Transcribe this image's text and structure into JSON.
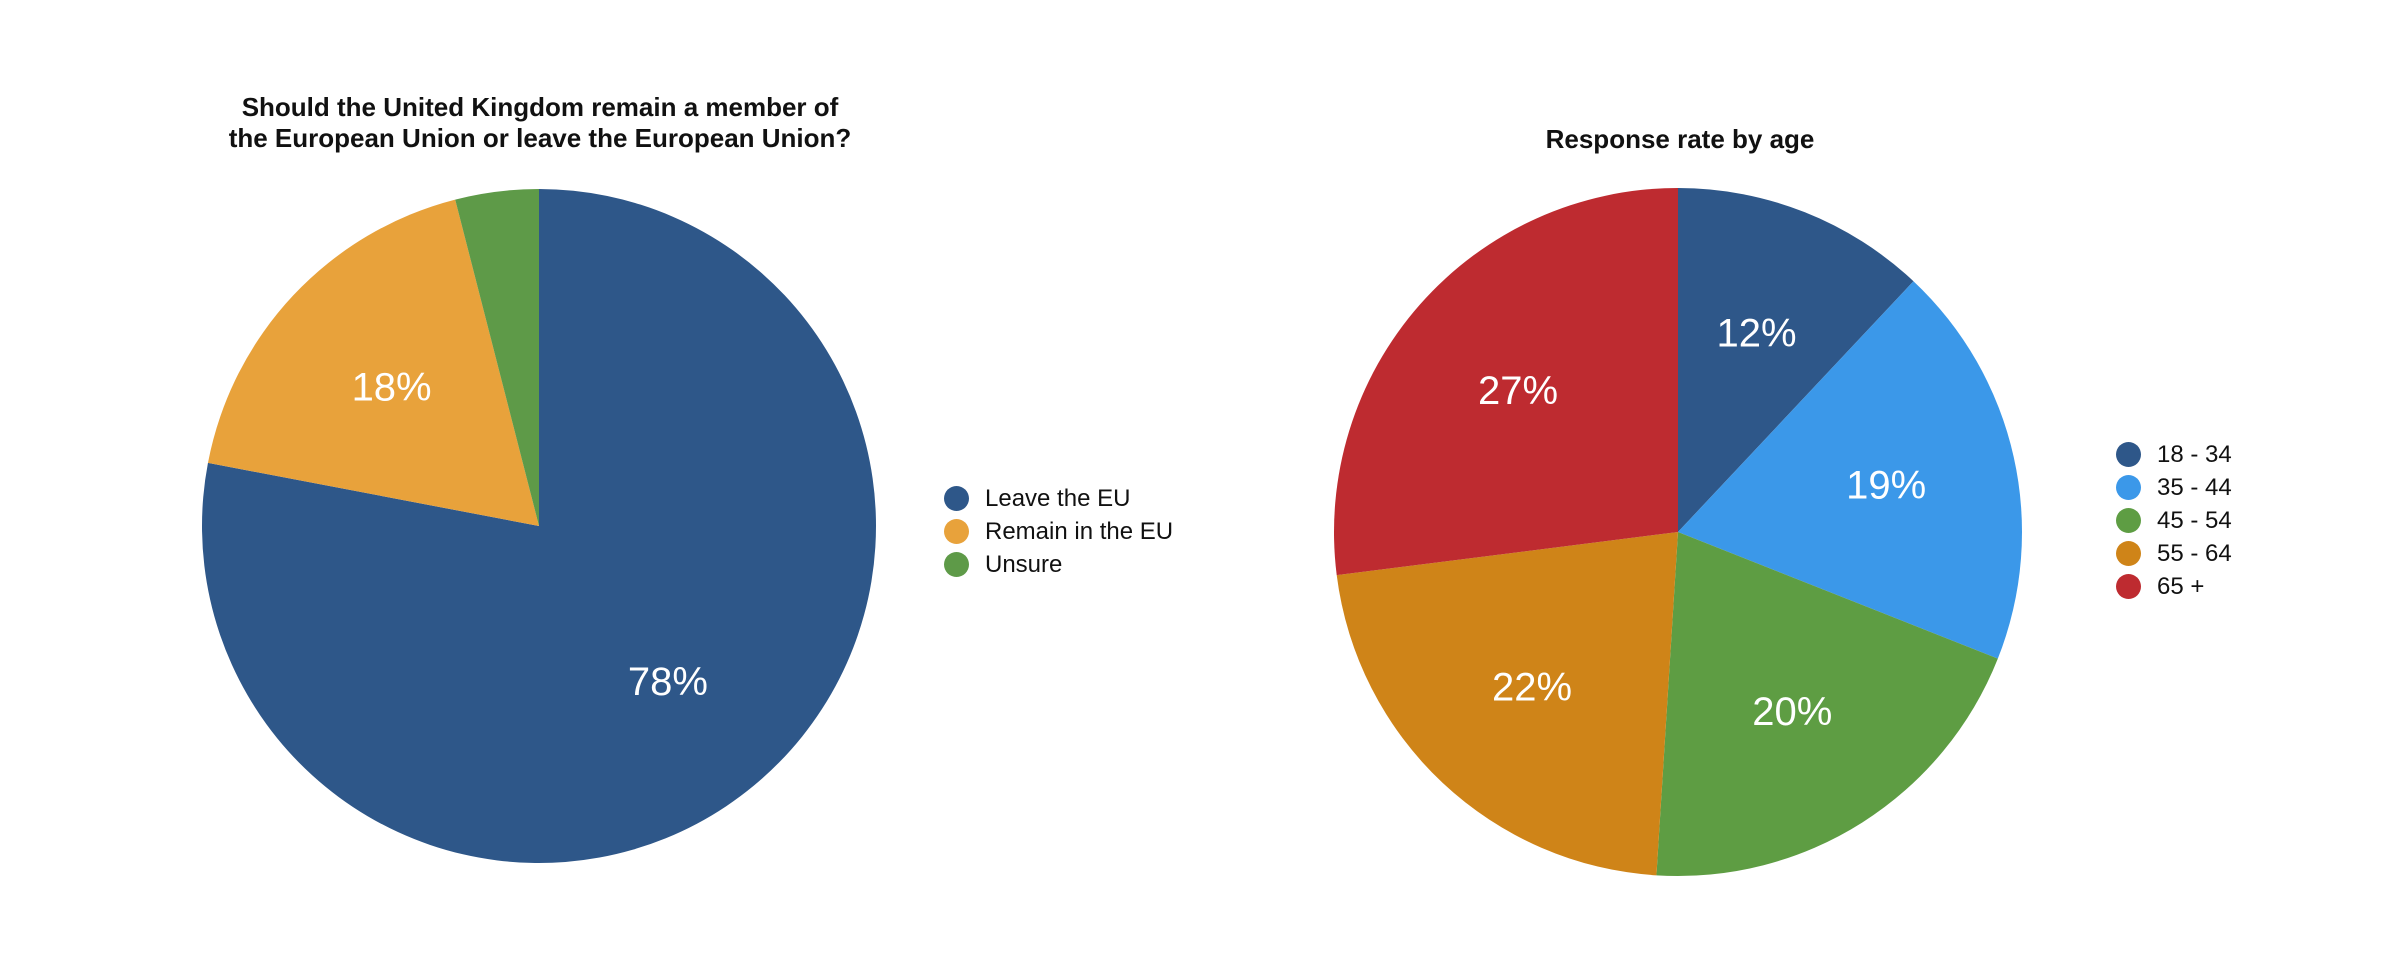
{
  "chart_data": [
    {
      "type": "pie",
      "title": "Should the United Kingdom remain a member of\nthe European Union or leave the European Union?",
      "categories": [
        "Leave the EU",
        "Remain in the EU",
        "Unsure"
      ],
      "values": [
        78,
        18,
        4
      ],
      "labels": [
        "78%",
        "18%",
        ""
      ],
      "colors": [
        "#2e5789",
        "#e8a23b",
        "#5e9a48"
      ],
      "start": "12 o'clock",
      "direction": "clockwise",
      "legend_position": "right"
    },
    {
      "type": "pie",
      "title": "Response rate by age",
      "categories": [
        "18 - 34",
        "35 - 44",
        "45 - 54",
        "55 - 64",
        "65 +"
      ],
      "values": [
        12,
        19,
        20,
        22,
        27
      ],
      "labels": [
        "12%",
        "19%",
        "20%",
        "22%",
        "27%"
      ],
      "colors": [
        "#2e5789",
        "#3b98e9",
        "#5e9d43",
        "#cf8418",
        "#be2b30"
      ],
      "start": "12 o'clock",
      "direction": "clockwise",
      "legend_position": "right"
    }
  ]
}
